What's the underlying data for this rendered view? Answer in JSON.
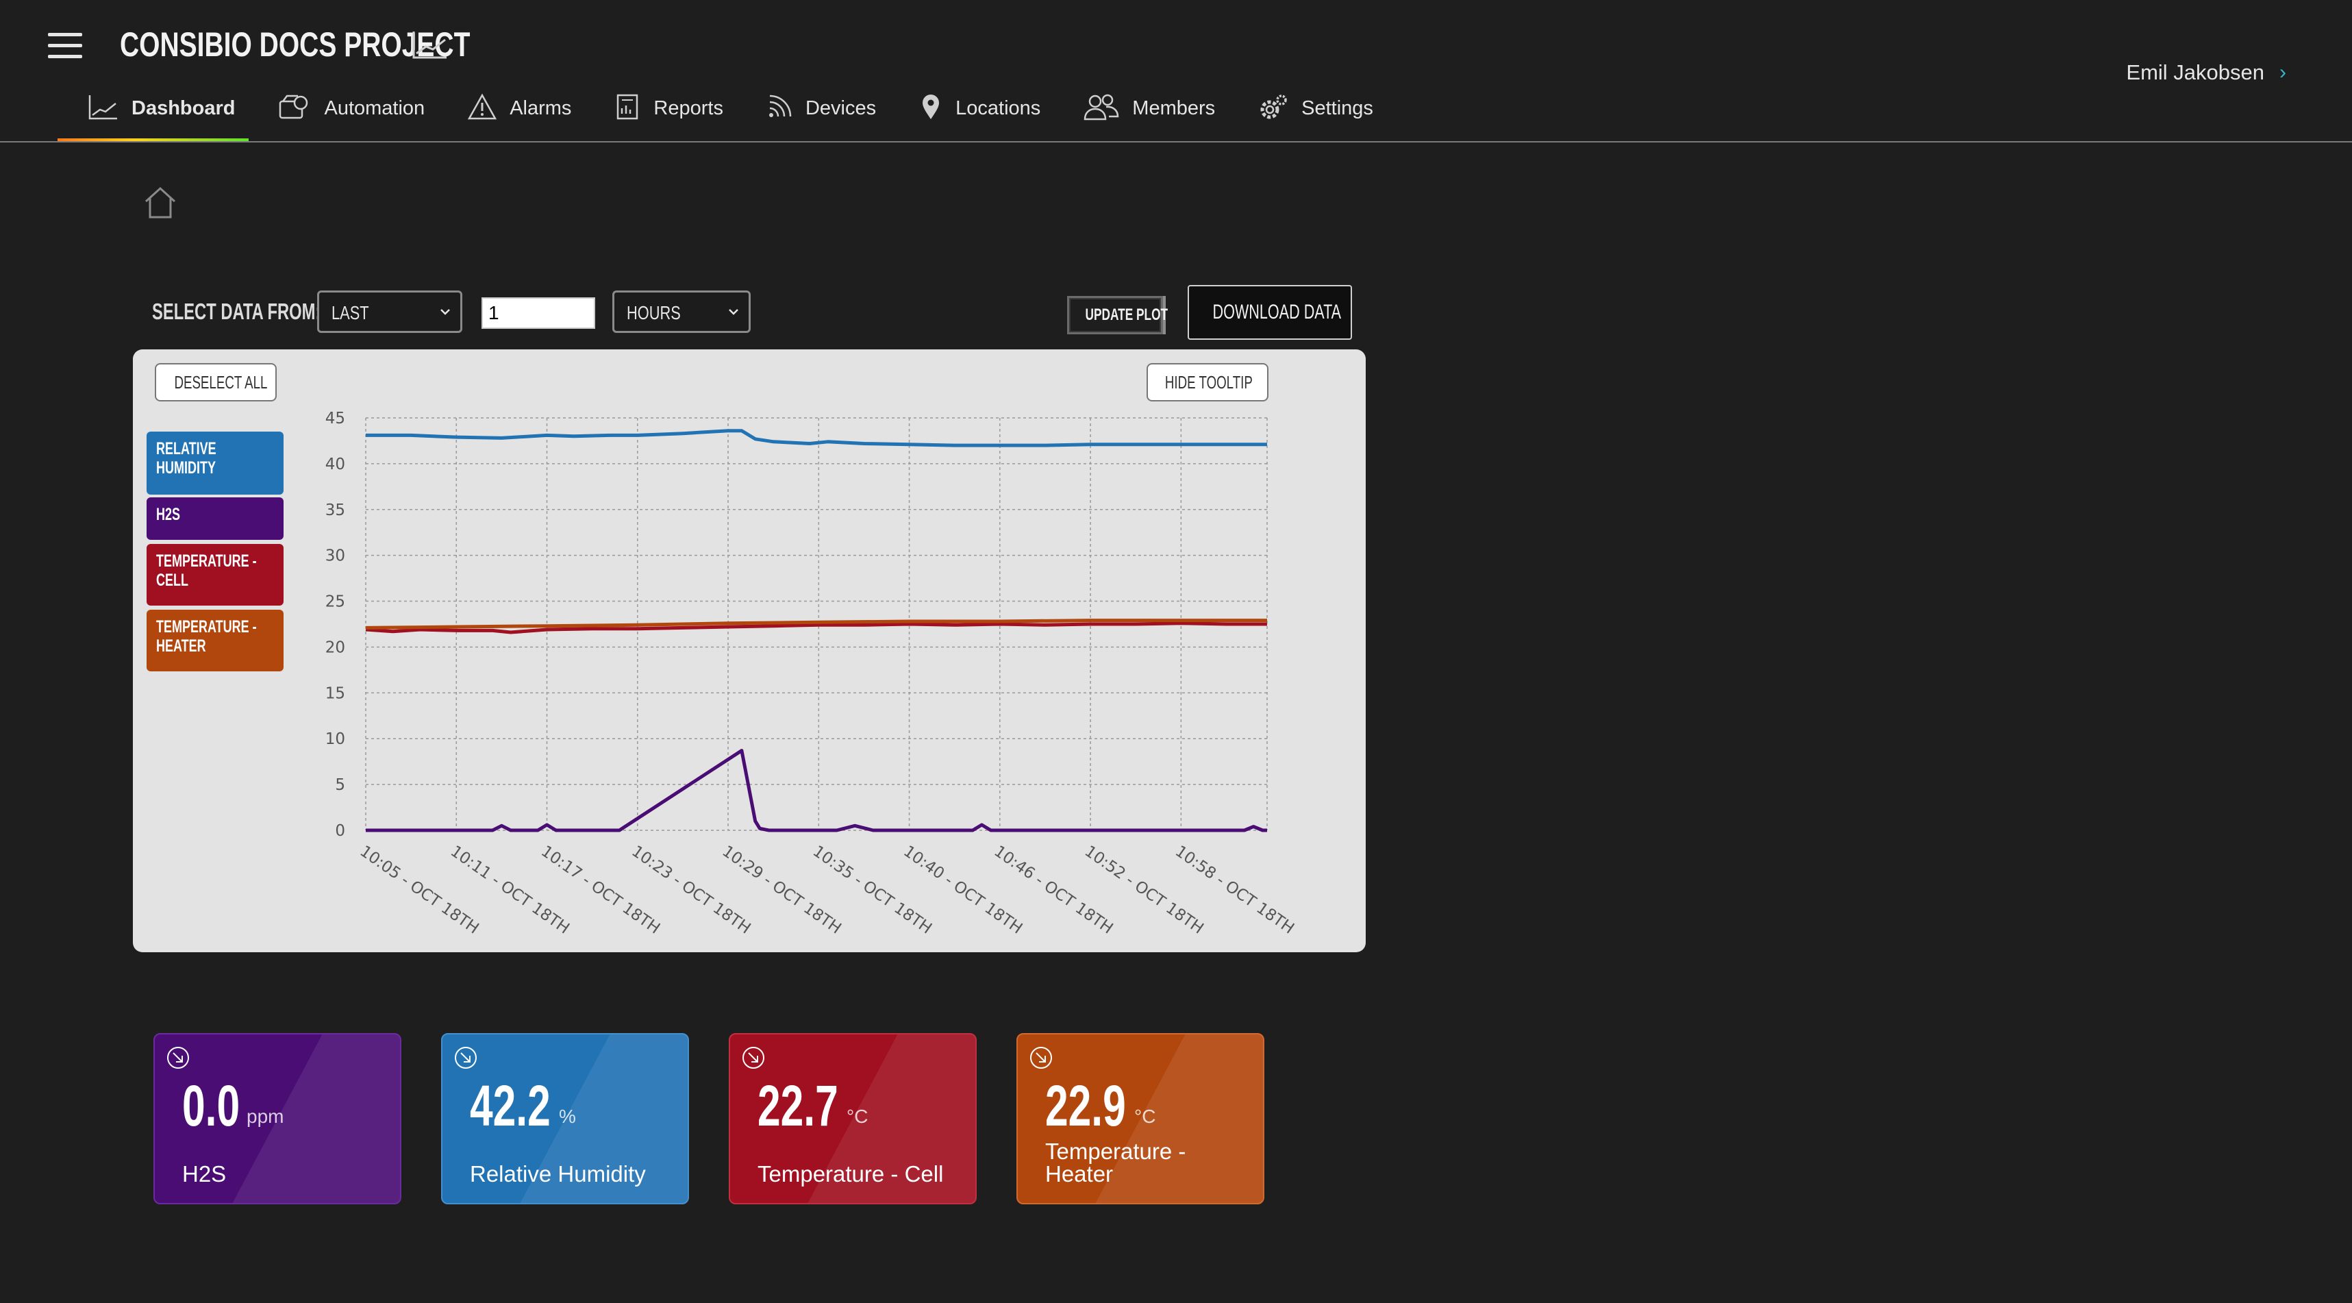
{
  "header": {
    "project_title": "CONSIBIO DOCS PROJECT",
    "user_name": "Emil Jakobsen"
  },
  "nav": {
    "items": [
      {
        "label": "Dashboard",
        "icon": "chart-icon",
        "active": true
      },
      {
        "label": "Automation",
        "icon": "automation-icon"
      },
      {
        "label": "Alarms",
        "icon": "warning-icon"
      },
      {
        "label": "Reports",
        "icon": "report-icon"
      },
      {
        "label": "Devices",
        "icon": "signal-icon"
      },
      {
        "label": "Locations",
        "icon": "map-pin-icon"
      },
      {
        "label": "Members",
        "icon": "members-icon"
      },
      {
        "label": "Settings",
        "icon": "gear-icon"
      }
    ]
  },
  "controls": {
    "select_label": "SELECT DATA FROM:",
    "range_value": "LAST",
    "number_value": "1",
    "unit_value": "HOURS",
    "update_plot": "UPDATE PLOT",
    "download_data": "DOWNLOAD DATA"
  },
  "chart_panel": {
    "deselect_all": "DESELECT ALL",
    "hide_tooltip": "HIDE TOOLTIP",
    "legend": [
      {
        "label": "RELATIVE HUMIDITY",
        "color": "#2273b4"
      },
      {
        "label": "H2S",
        "color": "#4a0d74"
      },
      {
        "label": "TEMPERATURE - CELL",
        "color": "#a01020"
      },
      {
        "label": "TEMPERATURE - HEATER",
        "color": "#b2470e"
      }
    ]
  },
  "chart_data": {
    "type": "line",
    "ylim": [
      0,
      45
    ],
    "yticks": [
      0,
      5,
      10,
      15,
      20,
      25,
      30,
      35,
      40,
      45
    ],
    "x_tick_labels": [
      "10:05 - OCT 18TH",
      "10:11 - OCT 18TH",
      "10:17 - OCT 18TH",
      "10:23 - OCT 18TH",
      "10:29 - OCT 18TH",
      "10:35 - OCT 18TH",
      "10:40 - OCT 18TH",
      "10:46 - OCT 18TH",
      "10:52 - OCT 18TH",
      "10:58 - OCT 18TH"
    ],
    "grid": true,
    "series": [
      {
        "name": "RELATIVE HUMIDITY",
        "color": "#2273b4",
        "x": [
          0,
          0.5,
          1,
          1.5,
          2,
          2.3,
          2.7,
          3,
          3.5,
          4,
          4.15,
          4.3,
          4.5,
          4.7,
          4.9,
          5.1,
          5.5,
          6,
          6.5,
          7,
          7.5,
          8,
          8.5,
          9,
          9.5,
          9.95
        ],
        "values": [
          43.1,
          43.1,
          42.9,
          42.8,
          43.1,
          43.0,
          43.1,
          43.1,
          43.3,
          43.6,
          43.6,
          42.7,
          42.4,
          42.3,
          42.2,
          42.4,
          42.2,
          42.1,
          42.0,
          42.0,
          42.0,
          42.1,
          42.1,
          42.1,
          42.1,
          42.1
        ]
      },
      {
        "name": "H2S",
        "color": "#4a0d74",
        "x": [
          0,
          1,
          1.4,
          1.5,
          1.6,
          1.9,
          2.0,
          2.1,
          2.8,
          4.15,
          4.3,
          4.35,
          4.45,
          4.6,
          5.2,
          5.4,
          5.6,
          6,
          6.7,
          6.8,
          6.9,
          7.5,
          8,
          9,
          9.7,
          9.8,
          9.9,
          9.95
        ],
        "values": [
          0,
          0,
          0,
          0.5,
          0,
          0,
          0.6,
          0,
          0,
          8.7,
          1.0,
          0.2,
          0,
          0,
          0,
          0.5,
          0,
          0,
          0,
          0.6,
          0,
          0,
          0,
          0,
          0,
          0.4,
          0,
          0
        ]
      },
      {
        "name": "TEMPERATURE - CELL",
        "color": "#a01020",
        "x": [
          0,
          0.3,
          0.6,
          1,
          1.4,
          1.6,
          2,
          2.5,
          3,
          3.5,
          4,
          4.5,
          5,
          5.5,
          6,
          6.5,
          7,
          7.5,
          8,
          8.5,
          9,
          9.5,
          9.95
        ],
        "values": [
          21.9,
          21.7,
          21.9,
          21.8,
          21.8,
          21.6,
          21.9,
          22.0,
          22.0,
          22.1,
          22.2,
          22.3,
          22.4,
          22.4,
          22.5,
          22.4,
          22.5,
          22.4,
          22.5,
          22.5,
          22.6,
          22.5,
          22.5
        ]
      },
      {
        "name": "TEMPERATURE - HEATER",
        "color": "#b2470e",
        "x": [
          0,
          1,
          2,
          3,
          4,
          5,
          6,
          7,
          8,
          9,
          9.95
        ],
        "values": [
          22.1,
          22.2,
          22.3,
          22.4,
          22.6,
          22.7,
          22.8,
          22.8,
          22.9,
          22.9,
          22.9
        ]
      }
    ]
  },
  "cards": [
    {
      "id": "h2s",
      "value": "0.0",
      "unit": "ppm",
      "name": "H2S",
      "color": "#4a0d74"
    },
    {
      "id": "rh",
      "value": "42.2",
      "unit": "%",
      "name": "Relative Humidity",
      "color": "#2273b4"
    },
    {
      "id": "tc",
      "value": "22.7",
      "unit": "°C",
      "name": "Temperature - Cell",
      "color": "#a01020"
    },
    {
      "id": "th",
      "value": "22.9",
      "unit": "°C",
      "name": "Temperature - Heater",
      "color": "#b2470e"
    }
  ]
}
